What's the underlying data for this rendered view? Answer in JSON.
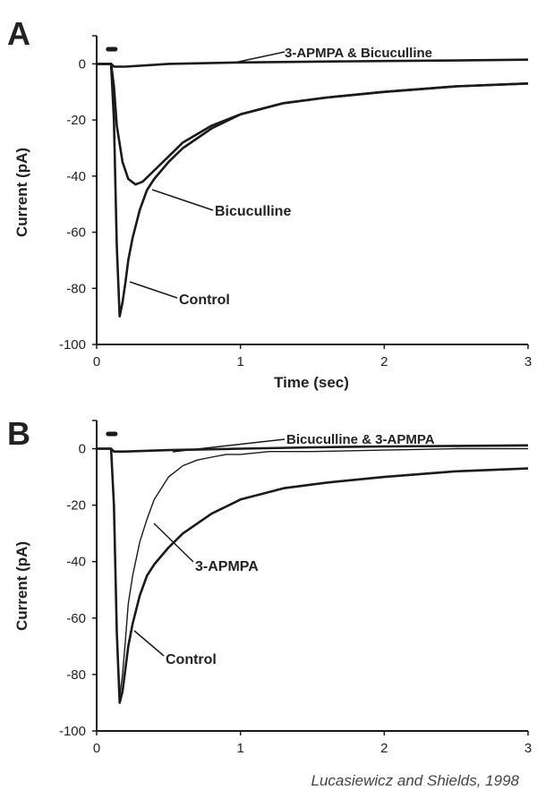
{
  "chart_data": [
    {
      "panel": "A",
      "type": "line",
      "xlabel": "Time (sec)",
      "ylabel": "Current (pA)",
      "xlim": [
        0,
        3
      ],
      "ylim": [
        -100,
        10
      ],
      "xticks": [
        "0",
        "1",
        "2",
        "3"
      ],
      "yticks": [
        "0",
        "-20",
        "-40",
        "-60",
        "-80",
        "-100"
      ],
      "stimulus_bar": [
        0.08,
        0.13
      ],
      "series": [
        {
          "name": "3-APMPA & Bicuculline",
          "x": [
            0,
            0.1,
            0.12,
            0.2,
            0.5,
            1,
            1.5,
            2,
            2.5,
            3
          ],
          "y": [
            0,
            0,
            -1,
            -1,
            0,
            0.5,
            0.8,
            1,
            1.2,
            1.5
          ]
        },
        {
          "name": "Bicuculline",
          "x": [
            0,
            0.1,
            0.12,
            0.14,
            0.18,
            0.22,
            0.27,
            0.32,
            0.4,
            0.5,
            0.6,
            0.8,
            1,
            1.3,
            1.6,
            2,
            2.5,
            3
          ],
          "y": [
            0,
            0,
            -8,
            -22,
            -35,
            -41,
            -43,
            -42,
            -38,
            -33,
            -28,
            -22,
            -18,
            -14,
            -12,
            -10,
            -8,
            -7
          ]
        },
        {
          "name": "Control",
          "x": [
            0,
            0.1,
            0.12,
            0.14,
            0.16,
            0.18,
            0.2,
            0.22,
            0.25,
            0.3,
            0.35,
            0.4,
            0.5,
            0.6,
            0.8,
            1,
            1.3,
            1.6,
            2,
            2.5,
            3
          ],
          "y": [
            0,
            0,
            -20,
            -65,
            -90,
            -85,
            -78,
            -70,
            -62,
            -52,
            -45,
            -41,
            -35,
            -30,
            -23,
            -18,
            -14,
            -12,
            -10,
            -8,
            -7
          ]
        }
      ]
    },
    {
      "panel": "B",
      "type": "line",
      "xlabel": "",
      "ylabel": "Current (pA)",
      "xlim": [
        0,
        3
      ],
      "ylim": [
        -100,
        10
      ],
      "xticks": [
        "0",
        "1",
        "2",
        "3"
      ],
      "yticks": [
        "0",
        "-20",
        "-40",
        "-60",
        "-80",
        "-100"
      ],
      "stimulus_bar": [
        0.08,
        0.13
      ],
      "series": [
        {
          "name": "Bicuculline & 3-APMPA",
          "x": [
            0,
            0.1,
            0.12,
            0.2,
            0.5,
            1,
            1.5,
            2,
            2.5,
            3
          ],
          "y": [
            0,
            0,
            -1,
            -1,
            -0.5,
            0,
            0.5,
            0.8,
            1,
            1.2
          ]
        },
        {
          "name": "3-APMPA",
          "x": [
            0,
            0.1,
            0.12,
            0.14,
            0.16,
            0.18,
            0.2,
            0.22,
            0.25,
            0.3,
            0.35,
            0.4,
            0.45,
            0.5,
            0.55,
            0.6,
            0.7,
            0.8,
            0.9,
            1,
            1.2,
            1.5,
            2,
            2.5,
            3
          ],
          "y": [
            0,
            0,
            -20,
            -65,
            -88,
            -80,
            -68,
            -55,
            -45,
            -33,
            -25,
            -18,
            -14,
            -10,
            -8,
            -6,
            -4,
            -3,
            -2,
            -2,
            -1,
            -1,
            -0.5,
            0,
            0
          ]
        },
        {
          "name": "Control",
          "x": [
            0,
            0.1,
            0.12,
            0.14,
            0.16,
            0.18,
            0.2,
            0.22,
            0.25,
            0.3,
            0.35,
            0.4,
            0.5,
            0.6,
            0.8,
            1,
            1.3,
            1.6,
            2,
            2.5,
            3
          ],
          "y": [
            0,
            0,
            -20,
            -65,
            -90,
            -86,
            -78,
            -70,
            -62,
            -52,
            -45,
            -41,
            -35,
            -30,
            -23,
            -18,
            -14,
            -12,
            -10,
            -8,
            -7
          ]
        }
      ]
    }
  ],
  "figure": {
    "panel_a_letter": "A",
    "panel_b_letter": "B",
    "credit": "Lucasiewicz and Shields, 1998"
  },
  "annotations": {
    "a_top": "3-APMPA & Bicuculline",
    "a_bic": "Bicuculline",
    "a_ctrl": "Control",
    "b_top": "Bicuculline & 3-APMPA",
    "b_apmpa": "3-APMPA",
    "b_ctrl": "Control"
  },
  "colors": {
    "trace": "#1a1a1a",
    "axis": "#1a1a1a"
  }
}
